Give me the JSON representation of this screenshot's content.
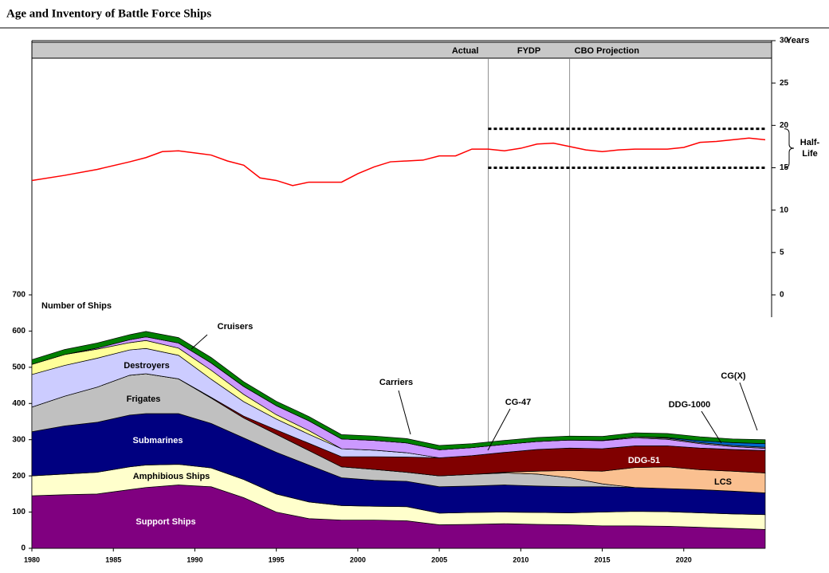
{
  "title": "Age and Inventory of Battle Force Ships",
  "chart_data": [
    {
      "type": "line",
      "x": [
        1980,
        1982,
        1984,
        1986,
        1987,
        1988,
        1989,
        1991,
        1992,
        1993,
        1994,
        1995,
        1996,
        1997,
        1999,
        2000,
        2001,
        2002,
        2004,
        2005,
        2006,
        2007,
        2008,
        2009,
        2010,
        2011,
        2012,
        2013,
        2014,
        2015,
        2016,
        2017,
        2019,
        2020,
        2021,
        2022,
        2024,
        2025
      ],
      "series": [
        {
          "color": "#ff0000",
          "values": [
            13.5,
            14.1,
            14.8,
            15.7,
            16.2,
            16.9,
            17.0,
            16.5,
            15.8,
            15.3,
            13.8,
            13.5,
            12.9,
            13.3,
            13.3,
            14.3,
            15.1,
            15.7,
            15.9,
            16.4,
            16.4,
            17.2,
            17.2,
            17.0,
            17.3,
            17.8,
            17.9,
            17.5,
            17.1,
            16.9,
            17.1,
            17.2,
            17.2,
            17.4,
            18.0,
            18.1,
            18.5,
            18.3
          ]
        }
      ],
      "xlim": [
        1980,
        2025
      ],
      "ylim": [
        0,
        30
      ],
      "yticks": [
        0,
        5,
        10,
        15,
        20,
        25,
        30
      ],
      "y_label": "Years",
      "period_labels": [
        "Actual",
        "FYDP",
        "CBO Projection"
      ],
      "period_boundaries": [
        2008,
        2013
      ],
      "half_life_band": [
        15,
        19.6
      ],
      "annotation": [
        "Half-",
        "Life"
      ]
    },
    {
      "type": "stacked-area",
      "title": "Number of Ships",
      "x": [
        1980,
        1982,
        1984,
        1986,
        1987,
        1989,
        1991,
        1993,
        1995,
        1997,
        1999,
        2001,
        2003,
        2005,
        2007,
        2009,
        2011,
        2013,
        2015,
        2017,
        2019,
        2021,
        2023,
        2025
      ],
      "series": [
        {
          "name": "Support Ships",
          "color": "#800080",
          "values": [
            145,
            148,
            150,
            162,
            168,
            175,
            170,
            140,
            100,
            82,
            78,
            78,
            76,
            65,
            66,
            68,
            66,
            65,
            62,
            62,
            61,
            58,
            55,
            52
          ]
        },
        {
          "name": "Amphibious Ships",
          "color": "#ffffcc",
          "values": [
            55,
            57,
            60,
            63,
            62,
            57,
            52,
            50,
            50,
            46,
            40,
            38,
            39,
            32,
            33,
            32,
            33,
            33,
            38,
            40,
            40,
            40,
            40,
            41
          ]
        },
        {
          "name": "Submarines",
          "color": "#000080",
          "values": [
            122,
            133,
            138,
            143,
            142,
            140,
            123,
            115,
            115,
            102,
            77,
            72,
            70,
            73,
            73,
            75,
            73,
            72,
            70,
            66,
            64,
            64,
            63,
            60
          ]
        },
        {
          "name": "Frigates",
          "color": "#c0c0c0",
          "values": [
            68,
            82,
            97,
            110,
            110,
            96,
            70,
            55,
            50,
            40,
            30,
            30,
            25,
            30,
            32,
            33,
            33,
            25,
            8,
            0,
            0,
            0,
            0,
            0
          ]
        },
        {
          "name": "LCS",
          "color": "#fac090",
          "values": [
            0,
            0,
            0,
            0,
            0,
            0,
            0,
            0,
            0,
            0,
            0,
            0,
            0,
            0,
            0,
            2,
            8,
            20,
            35,
            55,
            60,
            55,
            55,
            55
          ]
        },
        {
          "name": "DDG-51",
          "color": "#800000",
          "values": [
            0,
            0,
            0,
            0,
            0,
            0,
            2,
            5,
            12,
            20,
            28,
            35,
            42,
            50,
            52,
            55,
            60,
            62,
            62,
            60,
            58,
            60,
            60,
            62
          ]
        },
        {
          "name": "Destroyers",
          "color": "#ccccff",
          "values": [
            90,
            85,
            80,
            70,
            70,
            65,
            50,
            40,
            30,
            25,
            22,
            18,
            12,
            0,
            0,
            0,
            0,
            0,
            0,
            0,
            0,
            0,
            0,
            0
          ]
        },
        {
          "name": "Cruisers",
          "color": "#ffff99",
          "values": [
            28,
            30,
            25,
            20,
            22,
            20,
            25,
            20,
            12,
            10,
            0,
            0,
            0,
            0,
            0,
            0,
            0,
            0,
            0,
            0,
            0,
            0,
            0,
            0
          ]
        },
        {
          "name": "CG-47",
          "color": "#cc99ff",
          "values": [
            0,
            0,
            3,
            8,
            10,
            14,
            20,
            22,
            25,
            27,
            27,
            27,
            27,
            22,
            22,
            22,
            22,
            22,
            22,
            22,
            18,
            12,
            8,
            6
          ]
        },
        {
          "name": "DDG-1000",
          "color": "#a0a0a0",
          "values": [
            0,
            0,
            0,
            0,
            0,
            0,
            0,
            0,
            0,
            0,
            0,
            0,
            0,
            0,
            0,
            0,
            0,
            0,
            1,
            3,
            3,
            3,
            3,
            3
          ]
        },
        {
          "name": "CG(X)",
          "color": "#0066cc",
          "values": [
            0,
            0,
            0,
            0,
            0,
            0,
            0,
            0,
            0,
            0,
            0,
            0,
            0,
            0,
            0,
            0,
            0,
            0,
            0,
            0,
            2,
            5,
            8,
            10
          ]
        },
        {
          "name": "Carriers",
          "color": "#008000",
          "values": [
            13,
            14,
            14,
            14,
            15,
            15,
            15,
            13,
            12,
            12,
            12,
            12,
            12,
            12,
            11,
            11,
            11,
            11,
            11,
            11,
            11,
            11,
            10,
            11
          ]
        }
      ],
      "xlim": [
        1980,
        2025
      ],
      "xticks": [
        1980,
        1985,
        1990,
        1995,
        2000,
        2005,
        2010,
        2015,
        2020
      ],
      "ylim": [
        0,
        700
      ],
      "yticks": [
        0,
        100,
        200,
        300,
        400,
        500,
        600,
        700
      ]
    }
  ]
}
